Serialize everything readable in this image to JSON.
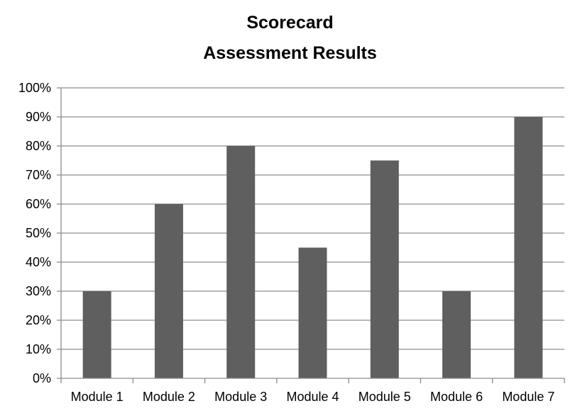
{
  "chart_data": {
    "type": "bar",
    "title_lines": [
      "Scorecard",
      "Assessment Results"
    ],
    "categories": [
      "Module 1",
      "Module 2",
      "Module 3",
      "Module 4",
      "Module 5",
      "Module 6",
      "Module 7"
    ],
    "values": [
      30,
      60,
      80,
      45,
      75,
      30,
      90
    ],
    "ylim": [
      0,
      100
    ],
    "yticks": [
      "0%",
      "10%",
      "20%",
      "30%",
      "40%",
      "50%",
      "60%",
      "70%",
      "80%",
      "90%",
      "100%"
    ],
    "grid": true,
    "legend": "none",
    "xlabel": "",
    "ylabel": ""
  },
  "colors": {
    "bar": "#5f5f5f",
    "grid": "#8c8c8c",
    "axis": "#8c8c8c"
  }
}
